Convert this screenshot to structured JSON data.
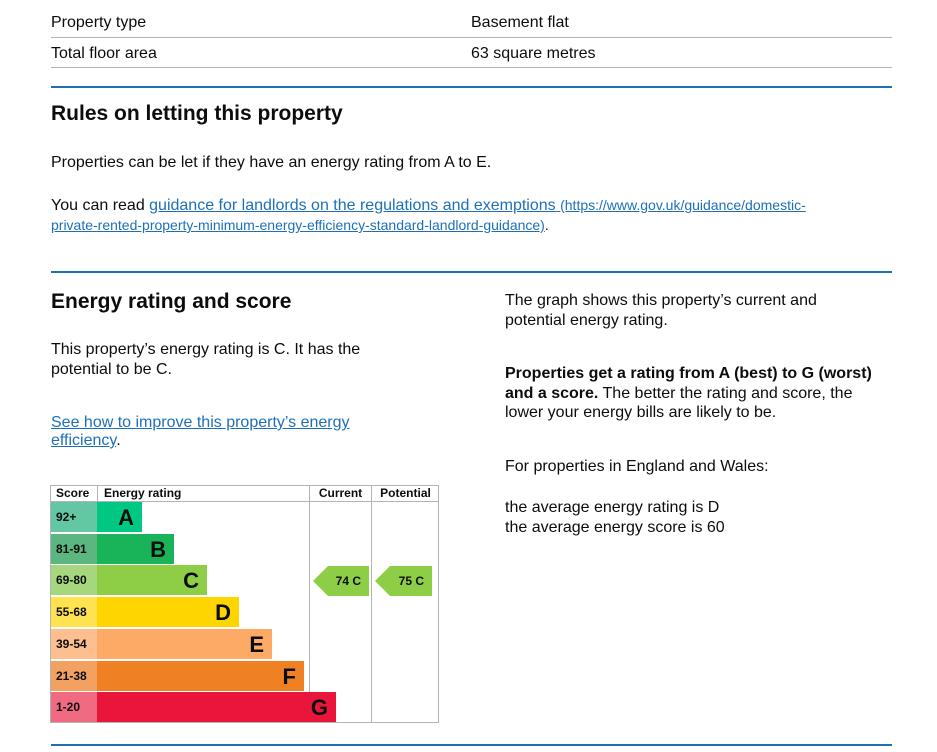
{
  "summary": {
    "rows": [
      {
        "label": "Property type",
        "value": "Basement flat"
      },
      {
        "label": "Total floor area",
        "value": "63 square metres"
      }
    ]
  },
  "letting": {
    "title": "Rules on letting this property",
    "intro": "Properties can be let if they have an energy rating from A to E.",
    "read_prefix": "You can read ",
    "link_text": "guidance for landlords on the regulations and exemptions",
    "link_url_1": "(https://www.gov.uk/guidance/domestic-",
    "link_url_2": "private-rented-property-minimum-energy-efficiency-standard-landlord-guidance)",
    "suffix": "."
  },
  "energy": {
    "title": "Energy rating and score",
    "rating_line_1": "This property’s energy rating is C. It has the",
    "rating_line_2": "potential to be C.",
    "improve_link_1": "See how to improve this property’s energy",
    "improve_link_2": "efficiency",
    "improve_suffix": ".",
    "graph_desc_1": "The graph shows this property’s current and",
    "graph_desc_2": "potential energy rating.",
    "scale_bold_1": "Properties get a rating from A (best) to G (worst)",
    "scale_bold_2": "and a score.",
    "scale_rest_1": " The better the rating and score, the",
    "scale_rest_2": "lower your energy bills are likely to be.",
    "region": "For properties in England and Wales:",
    "avg_rating": "the average energy rating is D",
    "avg_score": "the average energy score is 60"
  },
  "chart_data": {
    "type": "table",
    "headers": {
      "score": "Score",
      "rating": "Energy rating",
      "current": "Current",
      "potential": "Potential"
    },
    "bands": [
      {
        "score": "92+",
        "letter": "A",
        "color": "#00c781",
        "fill": 0.18
      },
      {
        "score": "81-91",
        "letter": "B",
        "color": "#19b459",
        "fill": 0.31
      },
      {
        "score": "69-80",
        "letter": "C",
        "color": "#8dce46",
        "fill": 0.44
      },
      {
        "score": "55-68",
        "letter": "D",
        "color": "#ffd500",
        "fill": 0.57
      },
      {
        "score": "39-54",
        "letter": "E",
        "color": "#fcaa65",
        "fill": 0.7
      },
      {
        "score": "21-38",
        "letter": "F",
        "color": "#ef8023",
        "fill": 0.83
      },
      {
        "score": "1-20",
        "letter": "G",
        "color": "#e9153b",
        "fill": 0.96
      }
    ],
    "current": {
      "score": 74,
      "letter": "C",
      "label": "74 C",
      "band_index": 2,
      "color": "#8dce46"
    },
    "potential": {
      "score": 75,
      "letter": "C",
      "label": "75 C",
      "band_index": 2,
      "color": "#8dce46"
    },
    "score_band_colors": [
      "#64c7a3",
      "#5bb77f",
      "#a6d77f",
      "#ffe250",
      "#fdbf8f",
      "#f3a161",
      "#f06a82"
    ]
  }
}
